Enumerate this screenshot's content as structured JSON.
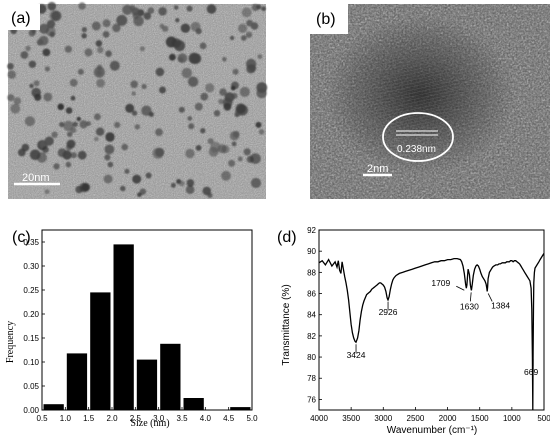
{
  "figure": {
    "panels": {
      "a": {
        "letter": "(a)",
        "type": "tem-image",
        "scale_bar": "20nm"
      },
      "b": {
        "letter": "(b)",
        "type": "hrtem-image",
        "lattice_label": "0.238nm",
        "scale_bar": "2nm"
      }
    }
  },
  "chart_data": [
    {
      "panel": "c",
      "letter": "(c)",
      "type": "bar",
      "title": "",
      "xlabel": "Size  (nm)",
      "ylabel": "Frequency",
      "xlim": [
        0.5,
        5.0
      ],
      "ylim": [
        0.0,
        0.375
      ],
      "bar_width": 0.5,
      "x_ticks": [
        "0.5",
        "1.0",
        "1.5",
        "2.0",
        "2.5",
        "3.0",
        "3.5",
        "4.0",
        "4.5",
        "5.0"
      ],
      "y_ticks": [
        "0.00",
        "0.05",
        "0.10",
        "0.15",
        "0.20",
        "0.25",
        "0.30",
        "0.35"
      ],
      "bars": [
        {
          "x": 0.75,
          "value": 0.012
        },
        {
          "x": 1.25,
          "value": 0.118
        },
        {
          "x": 1.75,
          "value": 0.245
        },
        {
          "x": 2.25,
          "value": 0.345
        },
        {
          "x": 2.75,
          "value": 0.105
        },
        {
          "x": 3.25,
          "value": 0.138
        },
        {
          "x": 3.75,
          "value": 0.025
        },
        {
          "x": 4.75,
          "value": 0.006
        }
      ],
      "grid": false,
      "bar_color": "#000000"
    },
    {
      "panel": "d",
      "letter": "(d)",
      "type": "line",
      "title": "",
      "xlabel": "Wavenumber (cm⁻¹)",
      "ylabel": "Transmittance (%)",
      "xlim": [
        4000,
        500
      ],
      "ylim": [
        75,
        92
      ],
      "x_reversed": true,
      "x_ticks": [
        "4000",
        "3500",
        "3000",
        "2500",
        "2000",
        "1500",
        "1000",
        "500"
      ],
      "y_ticks": [
        "76",
        "78",
        "80",
        "82",
        "84",
        "86",
        "88",
        "90",
        "92"
      ],
      "series": [
        {
          "color": "#000000",
          "x": [
            4000,
            3950,
            3900,
            3850,
            3800,
            3750,
            3720,
            3700,
            3680,
            3660,
            3640,
            3620,
            3600,
            3580,
            3560,
            3540,
            3520,
            3500,
            3480,
            3460,
            3440,
            3424,
            3400,
            3380,
            3360,
            3340,
            3320,
            3300,
            3280,
            3260,
            3240,
            3220,
            3200,
            3180,
            3160,
            3140,
            3120,
            3100,
            3080,
            3060,
            3040,
            3020,
            3000,
            2980,
            2960,
            2940,
            2926,
            2910,
            2890,
            2870,
            2850,
            2830,
            2800,
            2750,
            2700,
            2650,
            2600,
            2550,
            2500,
            2450,
            2400,
            2350,
            2300,
            2250,
            2200,
            2150,
            2100,
            2050,
            2000,
            1950,
            1900,
            1850,
            1800,
            1780,
            1760,
            1740,
            1720,
            1709,
            1700,
            1690,
            1680,
            1660,
            1645,
            1630,
            1615,
            1600,
            1580,
            1560,
            1540,
            1520,
            1500,
            1480,
            1460,
            1440,
            1420,
            1400,
            1390,
            1384,
            1378,
            1370,
            1350,
            1320,
            1300,
            1280,
            1250,
            1220,
            1200,
            1180,
            1150,
            1120,
            1100,
            1080,
            1060,
            1040,
            1020,
            1000,
            980,
            960,
            940,
            920,
            900,
            880,
            860,
            840,
            820,
            800,
            780,
            760,
            740,
            720,
            700,
            690,
            680,
            675,
            669,
            663,
            658,
            650,
            640,
            620,
            600,
            580,
            560,
            540,
            520,
            500
          ],
          "y": [
            88.9,
            89.1,
            88.7,
            89.2,
            88.6,
            89.0,
            88.5,
            89.1,
            88.2,
            87.9,
            89.0,
            88.3,
            87.6,
            87.0,
            86.3,
            85.4,
            84.2,
            83.1,
            82.3,
            81.8,
            81.5,
            81.4,
            81.8,
            82.5,
            83.5,
            84.3,
            84.9,
            85.3,
            85.6,
            85.9,
            86.0,
            86.1,
            86.2,
            86.4,
            86.5,
            86.6,
            86.7,
            86.8,
            86.9,
            87.0,
            87.0,
            86.9,
            86.8,
            86.6,
            86.2,
            85.6,
            85.4,
            85.7,
            86.4,
            86.9,
            87.3,
            87.5,
            87.7,
            87.9,
            88.0,
            88.1,
            88.2,
            88.3,
            88.4,
            88.5,
            88.6,
            88.7,
            88.8,
            88.9,
            89.0,
            89.0,
            89.1,
            89.1,
            89.2,
            89.2,
            89.3,
            89.3,
            89.2,
            89.0,
            88.6,
            87.9,
            86.9,
            86.5,
            86.8,
            87.6,
            88.3,
            87.8,
            86.8,
            86.3,
            86.9,
            87.7,
            88.3,
            88.6,
            88.7,
            88.6,
            88.3,
            87.9,
            87.6,
            87.4,
            87.2,
            86.9,
            86.5,
            86.2,
            86.6,
            87.4,
            88.0,
            88.3,
            88.5,
            88.6,
            88.7,
            88.7,
            88.8,
            88.8,
            88.9,
            88.9,
            88.9,
            89.0,
            89.0,
            89.0,
            89.1,
            89.1,
            89.0,
            89.1,
            89.1,
            89.0,
            88.9,
            88.8,
            88.6,
            88.4,
            88.2,
            88.0,
            87.8,
            87.6,
            87.4,
            87.2,
            86.5,
            84.5,
            80.0,
            74.5,
            80.5,
            84.8,
            87.0,
            88.0,
            88.4,
            88.6,
            88.8,
            89.0,
            89.2,
            89.4,
            89.6,
            89.8
          ]
        }
      ],
      "annotations": [
        {
          "text": "3424",
          "x": 3424,
          "y": 81.4
        },
        {
          "text": "2926",
          "x": 2926,
          "y": 85.4
        },
        {
          "text": "1709",
          "x": 1709,
          "y": 86.5
        },
        {
          "text": "1630",
          "x": 1630,
          "y": 86.3
        },
        {
          "text": "1384",
          "x": 1384,
          "y": 86.2
        },
        {
          "text": "669",
          "x": 669,
          "y": 80.0
        }
      ],
      "grid": false
    }
  ]
}
